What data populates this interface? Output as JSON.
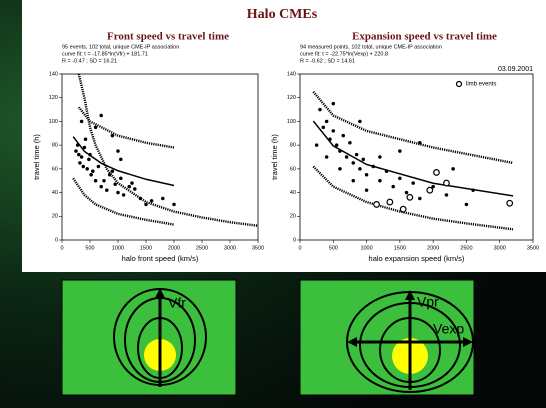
{
  "title": "Halo CMEs",
  "chart_data": [
    {
      "type": "scatter",
      "title": "Front  speed vs travel time",
      "notes": [
        "95 events, 102 total, unique CME-IP association",
        "curve fit: t = -17.85*ln(Vfr) + 181.71",
        "R = -0.47 ; SD = 16.21"
      ],
      "x_label": "halo front speed (km/s)",
      "y_label": "travel time (h)",
      "xlim": [
        0,
        3500
      ],
      "ylim": [
        0,
        140
      ],
      "xticks": [
        0,
        500,
        1000,
        1500,
        2000,
        2500,
        3000,
        3500
      ],
      "yticks": [
        0,
        20,
        40,
        60,
        80,
        100,
        120,
        140
      ],
      "series": [
        {
          "style": "points",
          "color": "#000000",
          "x": [
            250,
            280,
            300,
            320,
            350,
            380,
            400,
            420,
            450,
            480,
            500,
            520,
            550,
            600,
            650,
            700,
            750,
            800,
            850,
            900,
            950,
            1000,
            1050,
            1100,
            1200,
            1250,
            1300,
            1400,
            1500,
            1600,
            1800,
            2000,
            1050,
            600,
            700,
            900,
            1000,
            350
          ],
          "values": [
            75,
            80,
            72,
            65,
            70,
            62,
            78,
            85,
            60,
            68,
            72,
            55,
            58,
            50,
            62,
            45,
            50,
            42,
            55,
            58,
            47,
            40,
            52,
            38,
            45,
            48,
            43,
            35,
            30,
            33,
            35,
            30,
            68,
            95,
            105,
            88,
            75,
            100
          ]
        },
        {
          "style": "line",
          "color": "#000000",
          "x": [
            200,
            400,
            700,
            1000,
            1500,
            2000
          ],
          "values": [
            87.1,
            74.8,
            64.8,
            58.4,
            51.2,
            46.0
          ]
        },
        {
          "style": "dots",
          "color": "#000000",
          "x": [
            300,
            500,
            1000,
            1500,
            2000
          ],
          "values": [
            112,
            100,
            88,
            82,
            78
          ]
        },
        {
          "style": "dots",
          "color": "#000000",
          "x": [
            200,
            400,
            600,
            1000,
            1500,
            2000
          ],
          "values": [
            52,
            38,
            30,
            22,
            17,
            13
          ]
        },
        {
          "style": "dots",
          "color": "#000000",
          "x": [
            300,
            400,
            500,
            600,
            800,
            1000,
            1500,
            2000,
            2500,
            3000,
            3500
          ],
          "values": [
            140,
            120,
            95,
            80,
            60,
            48,
            32,
            24,
            19,
            15,
            12
          ]
        }
      ]
    },
    {
      "type": "scatter",
      "title": "Expansion speed vs travel time",
      "notes": [
        "94 measured points, 102 total, unique CME-IP association",
        "curve fit: t = -22.75*ln(Vexp) + 220.8",
        "R = -0.62 ; SD = 14.61"
      ],
      "annotation": "03.09.2001",
      "x_label": "halo expansion speed (km/s)",
      "y_label": "travel time (h)",
      "xlim": [
        0,
        3500
      ],
      "ylim": [
        0,
        140
      ],
      "xticks": [
        0,
        500,
        1000,
        1500,
        2000,
        2500,
        3000,
        3500
      ],
      "yticks": [
        0,
        20,
        40,
        60,
        80,
        100,
        120,
        140
      ],
      "legend": "upper right",
      "series": [
        {
          "style": "points",
          "color": "#000000",
          "x": [
            300,
            350,
            400,
            450,
            500,
            550,
            600,
            650,
            700,
            750,
            800,
            850,
            900,
            950,
            1000,
            1100,
            1200,
            1300,
            1400,
            1500,
            1600,
            1700,
            1800,
            2000,
            2200,
            2500,
            400,
            600,
            800,
            1000,
            1200,
            1500,
            2300,
            2600,
            250,
            500,
            900,
            1800
          ],
          "values": [
            110,
            95,
            100,
            85,
            92,
            80,
            75,
            88,
            70,
            82,
            65,
            72,
            60,
            68,
            55,
            62,
            50,
            58,
            45,
            52,
            40,
            48,
            35,
            45,
            38,
            30,
            70,
            60,
            50,
            42,
            70,
            75,
            60,
            42,
            80,
            115,
            100,
            82
          ]
        },
        {
          "style": "line",
          "color": "#000000",
          "x": [
            200,
            500,
            1000,
            2000,
            3200
          ],
          "values": [
            100.3,
            79.4,
            63.7,
            47.9,
            37.2
          ]
        },
        {
          "style": "dots",
          "color": "#000000",
          "x": [
            200,
            500,
            1000,
            2000,
            3200
          ],
          "values": [
            125,
            105,
            92,
            78,
            65
          ]
        },
        {
          "style": "dots",
          "color": "#000000",
          "x": [
            200,
            500,
            1000,
            1500,
            2000,
            2500,
            3200
          ],
          "values": [
            62,
            45,
            32,
            24,
            18,
            14,
            9
          ]
        },
        {
          "style": "open-circles",
          "name": "limb events",
          "color": "#000000",
          "x": [
            1150,
            1350,
            1550,
            1650,
            1950,
            2050,
            2200,
            3150
          ],
          "values": [
            30,
            32,
            26,
            36,
            42,
            57,
            48,
            31
          ]
        }
      ]
    }
  ],
  "diagrams": [
    {
      "labels": [
        "Vfr"
      ]
    },
    {
      "labels": [
        "Vpr",
        "Vexp"
      ]
    }
  ]
}
